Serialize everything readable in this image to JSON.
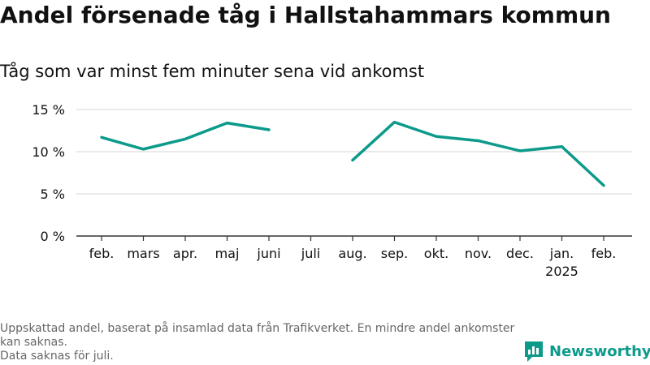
{
  "header": {
    "title": "Andel försenade tåg i Hallstahammars kommun",
    "subtitle": "Tåg som var minst fem minuter sena vid ankomst"
  },
  "footer": {
    "note_line1": "Uppskattad andel, baserat på insamlad data från Trafikverket. En mindre andel ankomster kan saknas.",
    "note_line2": "Data saknas för juli.",
    "brand": "Newsworthy"
  },
  "colors": {
    "line": "#0c9a8b",
    "grid": "#dddddd",
    "axis": "#333333",
    "text": "#111111",
    "note": "#666666"
  },
  "chart_data": {
    "type": "line",
    "categories": [
      "feb.",
      "mars",
      "apr.",
      "maj",
      "juni",
      "juli",
      "aug.",
      "sep.",
      "okt.",
      "nov.",
      "dec.",
      "jan.",
      "feb."
    ],
    "category_sublabels": [
      "",
      "",
      "",
      "",
      "",
      "",
      "",
      "",
      "",
      "",
      "",
      "2025",
      ""
    ],
    "series": [
      {
        "values": [
          11.7,
          10.3,
          11.5,
          13.4,
          12.6,
          null,
          9.0,
          13.5,
          11.8,
          11.3,
          10.1,
          10.6,
          6.0
        ]
      }
    ],
    "yticks": [
      0,
      5,
      10,
      15
    ],
    "ytick_labels": [
      "0 %",
      "5 %",
      "10 %",
      "15 %"
    ],
    "ylim": [
      0,
      15
    ],
    "grid": true
  }
}
